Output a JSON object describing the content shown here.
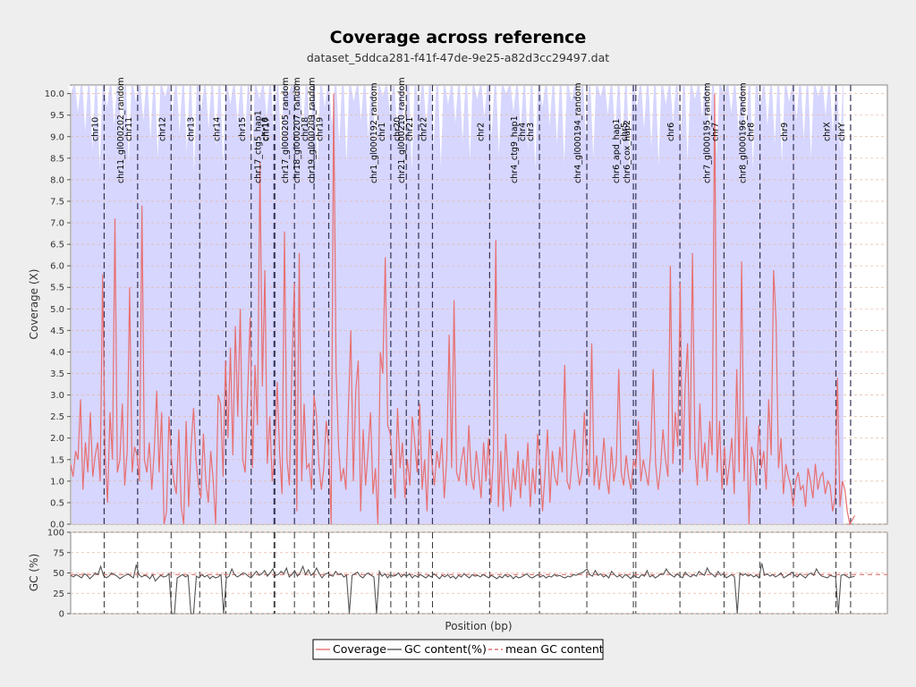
{
  "title": "Coverage across reference",
  "subtitle": "dataset_5ddca281-f41f-47de-9e25-a82d3cc29497.dat",
  "colors": {
    "background": "#eeeeee",
    "plot_bg": "#ffffff",
    "chromosome_fill": "#d6d6ff",
    "coverage_line": "#e87070",
    "gc_line": "#555555",
    "mean_gc_line": "#e07070",
    "grid": "#e6b8a0"
  },
  "chart_data": [
    {
      "type": "line",
      "xlabel": "",
      "ylabel": "Coverage (X)",
      "ylim": [
        0,
        10.2
      ],
      "yticks": [
        "0.0",
        "0.5",
        "1.0",
        "1.5",
        "2.0",
        "2.5",
        "3.0",
        "3.5",
        "4.0",
        "4.5",
        "5.0",
        "5.5",
        "6.0",
        "6.5",
        "7.0",
        "7.5",
        "8.0",
        "8.5",
        "9.0",
        "9.5",
        "10.0"
      ],
      "grid": true,
      "x_range": [
        0,
        1000
      ],
      "chromosomes": [
        {
          "name": "chr10",
          "start": 41
        },
        {
          "name": "chr11",
          "start": 82
        },
        {
          "name": "chr11_gl000202_random",
          "start": 82
        },
        {
          "name": "chr12",
          "start": 123
        },
        {
          "name": "chr13",
          "start": 158
        },
        {
          "name": "chr14",
          "start": 190
        },
        {
          "name": "chr15",
          "start": 221
        },
        {
          "name": "chr16",
          "start": 249
        },
        {
          "name": "chr17",
          "start": 250
        },
        {
          "name": "chr17_ctg5_hap1",
          "start": 250
        },
        {
          "name": "chr17_gl000205_random",
          "start": 274
        },
        {
          "name": "chr18",
          "start": 298
        },
        {
          "name": "chr18_gl000207_random",
          "start": 298
        },
        {
          "name": "chr19",
          "start": 316
        },
        {
          "name": "chr19_gl000209_random",
          "start": 316
        },
        {
          "name": "chr1",
          "start": 392
        },
        {
          "name": "chr1_gl000192_random",
          "start": 392
        },
        {
          "name": "chr20",
          "start": 411
        },
        {
          "name": "chr21",
          "start": 426
        },
        {
          "name": "chr21_gl000210_random",
          "start": 426
        },
        {
          "name": "chr22",
          "start": 443
        },
        {
          "name": "chr2",
          "start": 513
        },
        {
          "name": "chr3",
          "start": 574
        },
        {
          "name": "chr4",
          "start": 574
        },
        {
          "name": "chr4_ctg9_hap1",
          "start": 574
        },
        {
          "name": "chr4_gl000194_random",
          "start": 632
        },
        {
          "name": "chr5",
          "start": 689
        },
        {
          "name": "chr6",
          "start": 746
        },
        {
          "name": "chr6_apd_hap1",
          "start": 689
        },
        {
          "name": "chr6_cox_hap2",
          "start": 692
        },
        {
          "name": "chr7",
          "start": 800
        },
        {
          "name": "chr7_gl000195_random",
          "start": 800
        },
        {
          "name": "chr8",
          "start": 844
        },
        {
          "name": "chr8_gl000196_random",
          "start": 844
        },
        {
          "name": "chr9",
          "start": 885
        },
        {
          "name": "chrX",
          "start": 937
        },
        {
          "name": "chrY",
          "start": 955
        }
      ],
      "series": [
        {
          "name": "Coverage",
          "values": [
            1.4,
            1.1,
            1.7,
            1.5,
            2.9,
            0.8,
            1.9,
            1.2,
            2.6,
            1.1,
            1.6,
            1.9,
            1.0,
            5.8,
            1.6,
            0.5,
            2.6,
            1.5,
            7.1,
            1.2,
            1.5,
            2.8,
            0.9,
            1.7,
            5.5,
            1.2,
            1.8,
            1.6,
            1.0,
            7.4,
            1.5,
            1.2,
            1.9,
            0.8,
            1.7,
            3.1,
            1.2,
            2.6,
            0.0,
            0.3,
            2.5,
            1.5,
            1.0,
            0.7,
            2.2,
            0.4,
            0.0,
            2.4,
            0.4,
            1.8,
            2.7,
            1.5,
            0.9,
            0.6,
            2.1,
            1.0,
            0.5,
            1.7,
            1.0,
            0.0,
            3.0,
            2.8,
            1.1,
            3.8,
            2.0,
            4.1,
            1.6,
            4.6,
            2.5,
            5.0,
            1.5,
            1.2,
            3.0,
            4.8,
            1.3,
            3.7,
            2.3,
            8.4,
            3.2,
            5.9,
            1.4,
            2.5,
            1.0,
            1.6,
            3.3,
            1.7,
            0.7,
            6.8,
            1.5,
            0.9,
            3.6,
            5.6,
            0.3,
            6.3,
            1.0,
            2.8,
            1.3,
            1.4,
            0.8,
            3.0,
            2.5,
            1.4,
            0.8,
            1.3,
            2.4,
            1.8,
            0.0,
            10.0,
            3.6,
            1.8,
            1.0,
            1.3,
            0.8,
            2.7,
            4.5,
            1.0,
            3.1,
            3.8,
            0.3,
            2.2,
            0.9,
            1.7,
            2.6,
            0.7,
            1.3,
            0.0,
            4.0,
            3.5,
            6.2,
            2.3,
            2.1,
            1.4,
            0.6,
            2.7,
            1.3,
            1.9,
            0.6,
            1.5,
            0.9,
            2.5,
            1.9,
            1.2,
            2.8,
            0.8,
            1.5,
            0.3,
            2.2,
            1.4,
            0.9,
            1.7,
            1.3,
            2.0,
            0.6,
            1.5,
            4.4,
            1.3,
            5.2,
            1.2,
            1.0,
            1.5,
            1.8,
            0.9,
            2.3,
            1.1,
            0.8,
            1.7,
            1.2,
            0.6,
            1.9,
            1.0,
            2.0,
            0.5,
            1.6,
            6.6,
            0.4,
            1.7,
            0.3,
            2.1,
            1.1,
            0.4,
            1.3,
            0.8,
            1.7,
            0.6,
            1.5,
            0.9,
            1.9,
            0.4,
            1.3,
            0.7,
            2.1,
            1.3,
            0.3,
            1.2,
            2.2,
            0.5,
            1.7,
            1.1,
            0.9,
            1.8,
            1.2,
            3.7,
            1.0,
            0.8,
            1.5,
            2.2,
            1.4,
            0.9,
            1.2,
            2.6,
            1.5,
            1.1,
            4.2,
            0.9,
            1.6,
            0.8,
            1.3,
            2.0,
            1.1,
            0.7,
            1.8,
            1.0,
            1.4,
            3.6,
            1.2,
            0.9,
            1.6,
            1.1,
            0.8,
            1.5,
            1.3,
            2.4,
            1.0,
            1.5,
            1.2,
            0.9,
            1.7,
            3.6,
            1.4,
            0.8,
            1.3,
            2.2,
            1.5,
            1.1,
            6.0,
            1.4,
            2.6,
            1.8,
            5.6,
            1.2,
            3.2,
            4.2,
            1.5,
            6.3,
            1.7,
            0.9,
            2.8,
            1.3,
            1.9,
            1.0,
            2.4,
            1.6,
            10.0,
            1.2,
            2.4,
            0.8,
            1.8,
            0.9,
            1.4,
            2.0,
            0.7,
            3.6,
            1.2,
            6.1,
            1.0,
            2.5,
            0.0,
            1.8,
            1.5,
            0.9,
            2.3,
            1.3,
            1.7,
            0.8,
            2.9,
            1.6,
            5.9,
            4.7,
            1.3,
            2.0,
            0.7,
            1.4,
            1.1,
            0.9,
            0.4,
            1.0,
            1.2,
            0.8,
            0.9,
            0.4,
            1.3,
            1.0,
            0.6,
            1.4,
            0.8,
            1.1,
            1.2,
            0.7,
            1.0,
            0.9,
            0.3,
            0.6,
            3.4,
            0.4,
            1.0,
            0.8,
            0.3,
            0.0,
            0.1,
            0.2
          ]
        }
      ]
    },
    {
      "type": "line",
      "xlabel": "Position (bp)",
      "ylabel": "GC (%)",
      "ylim": [
        0,
        100
      ],
      "yticks": [
        "0",
        "25",
        "50",
        "75",
        "100"
      ],
      "grid": true,
      "mean_gc": 48,
      "series": [
        {
          "name": "GC content(%)",
          "values": [
            47,
            45,
            48,
            46,
            44,
            49,
            47,
            43,
            46,
            50,
            48,
            58,
            47,
            44,
            46,
            50,
            48,
            46,
            43,
            45,
            47,
            49,
            46,
            44,
            60,
            48,
            45,
            47,
            46,
            43,
            48,
            40,
            44,
            47,
            45,
            46,
            49,
            0,
            0,
            44,
            46,
            48,
            45,
            47,
            0,
            0,
            46,
            44,
            48,
            45,
            47,
            43,
            46,
            44,
            45,
            48,
            0,
            44,
            46,
            55,
            48,
            45,
            47,
            50,
            49,
            46,
            44,
            48,
            52,
            47,
            49,
            53,
            46,
            50,
            55,
            47,
            48,
            52,
            49,
            56,
            45,
            48,
            53,
            46,
            50,
            58,
            48,
            54,
            47,
            50,
            56,
            49,
            44,
            48,
            50,
            47,
            46,
            52,
            48,
            49,
            45,
            47,
            0,
            47,
            49,
            51,
            46,
            44,
            48,
            50,
            47,
            45,
            0,
            52,
            46,
            49,
            44,
            48,
            46,
            47,
            50,
            45,
            48,
            46,
            49,
            44,
            47,
            45,
            48,
            46,
            44,
            47,
            45,
            49,
            46,
            43,
            47,
            45,
            48,
            44,
            46,
            43,
            47,
            45,
            49,
            46,
            44,
            48,
            46,
            47,
            45,
            48,
            46,
            44,
            47,
            45,
            43,
            46,
            44,
            48,
            45,
            47,
            43,
            46,
            44,
            45,
            47,
            49,
            45,
            44,
            46,
            48,
            45,
            47,
            44,
            46,
            45,
            48,
            46,
            47,
            45,
            44,
            46,
            45,
            48,
            47,
            49,
            50,
            52,
            55,
            48,
            46,
            53,
            47,
            49,
            45,
            47,
            44,
            52,
            48,
            45,
            47,
            44,
            48,
            46,
            43,
            47,
            45,
            44,
            48,
            46,
            53,
            45,
            47,
            44,
            46,
            49,
            48,
            55,
            50,
            47,
            45,
            49,
            46,
            44,
            51,
            47,
            45,
            48,
            46,
            52,
            49,
            47,
            56,
            50,
            48,
            45,
            52,
            47,
            49,
            44,
            46,
            48,
            45,
            0,
            50,
            47,
            49,
            46,
            48,
            45,
            47,
            44,
            62,
            47,
            49,
            46,
            48,
            45,
            47,
            50,
            44,
            46,
            48,
            51,
            47,
            45,
            49,
            46,
            44,
            48,
            50,
            47,
            55,
            49,
            46,
            45,
            44,
            47,
            46,
            45,
            0,
            47,
            48,
            46,
            44,
            45,
            46
          ]
        }
      ]
    }
  ],
  "legend": {
    "items": [
      {
        "label": "Coverage"
      },
      {
        "label": "GC content(%)"
      },
      {
        "label": "mean GC content"
      }
    ]
  }
}
